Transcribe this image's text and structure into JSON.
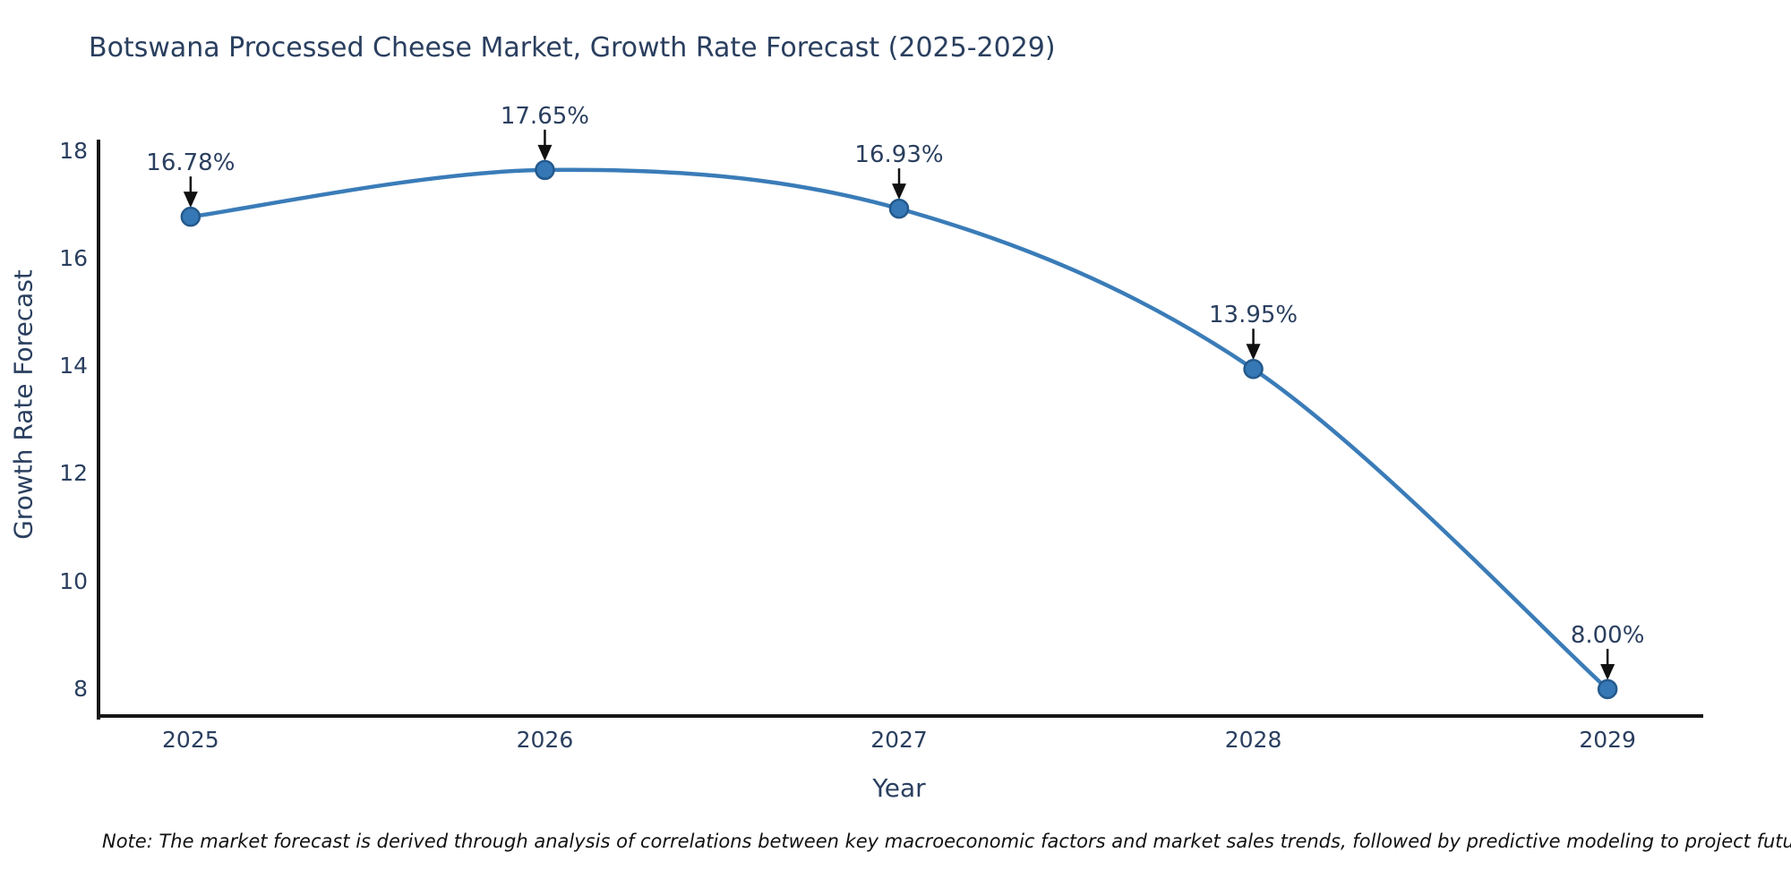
{
  "chart_data": {
    "type": "line",
    "title": "Botswana Processed Cheese Market, Growth Rate Forecast (2025-2029)",
    "xlabel": "Year",
    "ylabel": "Growth Rate Forecast",
    "x": [
      2025,
      2026,
      2027,
      2028,
      2029
    ],
    "series": [
      {
        "name": "Growth Rate Forecast",
        "values": [
          16.78,
          17.65,
          16.93,
          13.95,
          8.0
        ]
      }
    ],
    "point_labels": [
      "16.78%",
      "17.65%",
      "16.93%",
      "13.95%",
      "8.00%"
    ],
    "x_tick_labels": [
      "2025",
      "2026",
      "2027",
      "2028",
      "2029"
    ],
    "y_tick_values": [
      8,
      10,
      12,
      14,
      16,
      18
    ],
    "xlim": [
      2024.74,
      2029.26
    ],
    "ylim": [
      7.5,
      18.18
    ],
    "grid": false,
    "legend": "none",
    "line_shape": "spline",
    "colors": {
      "line": "#3a7cb8",
      "marker_fill": "#3578b5",
      "marker_edge": "#24598c",
      "axis": "#161616",
      "text": "#2a3f5f",
      "arrow": "#111111"
    },
    "note": "Note: The market forecast is derived through analysis of correlations between key macroeconomic factors and market sales trends, followed by predictive modeling to project future sales"
  }
}
